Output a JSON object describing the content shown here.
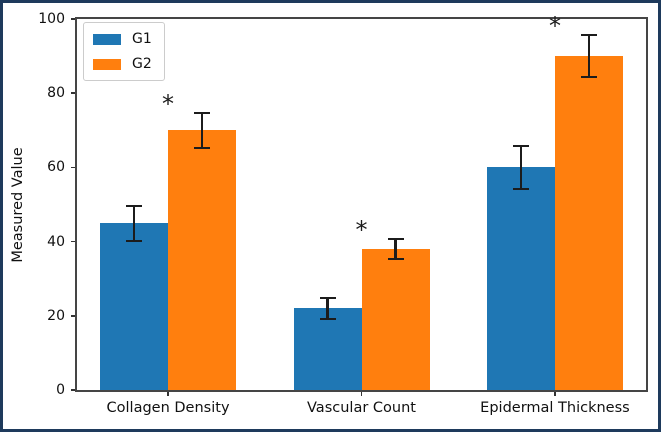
{
  "chart_data": {
    "type": "bar",
    "title": "",
    "xlabel": "",
    "ylabel": "Measured Value",
    "categories": [
      "Collagen Density",
      "Vascular Count",
      "Epidermal Thickness"
    ],
    "series": [
      {
        "name": "G1",
        "color": "#1f77b4",
        "values": [
          45,
          22,
          60
        ],
        "errors": [
          5,
          3,
          6
        ],
        "significant": [
          false,
          false,
          false
        ]
      },
      {
        "name": "G2",
        "color": "#ff7f0e",
        "values": [
          70,
          38,
          90
        ],
        "errors": [
          5,
          3,
          6
        ],
        "significant": [
          true,
          true,
          true
        ]
      }
    ],
    "significance_marker": "*",
    "y_ticks": [
      0,
      20,
      40,
      60,
      80,
      100
    ],
    "ylim": [
      0,
      100
    ],
    "grid": false,
    "legend_position": "upper-left",
    "error_bar_color": "#1c1c1c",
    "spine_color": "#454545",
    "frame_color": "#1e3a5c",
    "background_color": "#ffffff"
  }
}
